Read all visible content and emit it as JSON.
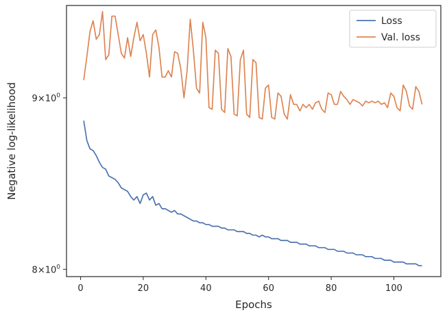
{
  "chart_data": {
    "type": "line",
    "xlabel": "Epochs",
    "ylabel": "Negative log-likelihood",
    "yscale": "log",
    "xlim": [
      -4.5,
      115
    ],
    "ylim": [
      7.96,
      9.59
    ],
    "xticks": [
      0,
      20,
      40,
      60,
      80,
      100
    ],
    "xtick_labels": [
      "0",
      "20",
      "40",
      "60",
      "80",
      "100"
    ],
    "yticks": [
      8,
      9
    ],
    "ytick_labels": [
      {
        "base": "8×10",
        "exp": "0"
      },
      {
        "base": "9×10",
        "exp": "0"
      }
    ],
    "grid": false,
    "legend_position": "top-right",
    "series": [
      {
        "name": "Loss",
        "color": "#4c72b0",
        "x": [
          1,
          2,
          3,
          4,
          5,
          6,
          7,
          8,
          9,
          10,
          11,
          12,
          13,
          14,
          15,
          16,
          17,
          18,
          19,
          20,
          21,
          22,
          23,
          24,
          25,
          26,
          27,
          28,
          29,
          30,
          31,
          32,
          33,
          34,
          35,
          36,
          37,
          38,
          39,
          40,
          41,
          42,
          43,
          44,
          45,
          46,
          47,
          48,
          49,
          50,
          51,
          52,
          53,
          54,
          55,
          56,
          57,
          58,
          59,
          60,
          61,
          62,
          63,
          64,
          65,
          66,
          67,
          68,
          69,
          70,
          71,
          72,
          73,
          74,
          75,
          76,
          77,
          78,
          79,
          80,
          81,
          82,
          83,
          84,
          85,
          86,
          87,
          88,
          89,
          90,
          91,
          92,
          93,
          94,
          95,
          96,
          97,
          98,
          99,
          100,
          101,
          102,
          103,
          104,
          105,
          106,
          107,
          108,
          109
        ],
        "y": [
          8.86,
          8.74,
          8.69,
          8.68,
          8.65,
          8.61,
          8.58,
          8.57,
          8.53,
          8.52,
          8.51,
          8.49,
          8.46,
          8.45,
          8.44,
          8.41,
          8.39,
          8.41,
          8.37,
          8.42,
          8.43,
          8.39,
          8.41,
          8.36,
          8.37,
          8.34,
          8.34,
          8.33,
          8.32,
          8.33,
          8.31,
          8.31,
          8.3,
          8.29,
          8.28,
          8.27,
          8.27,
          8.26,
          8.26,
          8.25,
          8.25,
          8.24,
          8.24,
          8.24,
          8.23,
          8.23,
          8.22,
          8.22,
          8.22,
          8.21,
          8.21,
          8.21,
          8.2,
          8.2,
          8.19,
          8.19,
          8.18,
          8.19,
          8.18,
          8.18,
          8.17,
          8.17,
          8.17,
          8.16,
          8.16,
          8.16,
          8.15,
          8.15,
          8.15,
          8.14,
          8.14,
          8.14,
          8.13,
          8.13,
          8.13,
          8.12,
          8.12,
          8.12,
          8.11,
          8.11,
          8.11,
          8.1,
          8.1,
          8.1,
          8.09,
          8.09,
          8.09,
          8.08,
          8.08,
          8.08,
          8.07,
          8.07,
          8.07,
          8.06,
          8.06,
          8.06,
          8.05,
          8.05,
          8.05,
          8.04,
          8.04,
          8.04,
          8.04,
          8.03,
          8.03,
          8.03,
          8.03,
          8.02,
          8.02
        ]
      },
      {
        "name": "Val. loss",
        "color": "#dd8452",
        "x": [
          1,
          2,
          3,
          4,
          5,
          6,
          7,
          8,
          9,
          10,
          11,
          12,
          13,
          14,
          15,
          16,
          17,
          18,
          19,
          20,
          21,
          22,
          23,
          24,
          25,
          26,
          27,
          28,
          29,
          30,
          31,
          32,
          33,
          34,
          35,
          36,
          37,
          38,
          39,
          40,
          41,
          42,
          43,
          44,
          45,
          46,
          47,
          48,
          49,
          50,
          51,
          52,
          53,
          54,
          55,
          56,
          57,
          58,
          59,
          60,
          61,
          62,
          63,
          64,
          65,
          66,
          67,
          68,
          69,
          70,
          71,
          72,
          73,
          74,
          75,
          76,
          77,
          78,
          79,
          80,
          81,
          82,
          83,
          84,
          85,
          86,
          87,
          88,
          89,
          90,
          91,
          92,
          93,
          94,
          95,
          96,
          97,
          98,
          99,
          100,
          101,
          102,
          103,
          104,
          105,
          106,
          107,
          108,
          109
        ],
        "y": [
          9.11,
          9.26,
          9.42,
          9.49,
          9.37,
          9.4,
          9.55,
          9.24,
          9.27,
          9.52,
          9.52,
          9.4,
          9.28,
          9.25,
          9.38,
          9.26,
          9.38,
          9.48,
          9.36,
          9.4,
          9.28,
          9.13,
          9.4,
          9.43,
          9.32,
          9.13,
          9.13,
          9.17,
          9.13,
          9.29,
          9.28,
          9.18,
          9.0,
          9.17,
          9.5,
          9.3,
          9.06,
          9.03,
          9.48,
          9.38,
          8.94,
          8.93,
          9.3,
          9.28,
          8.93,
          8.91,
          9.31,
          9.26,
          8.9,
          8.89,
          9.24,
          9.3,
          8.9,
          8.88,
          9.24,
          9.22,
          8.88,
          8.87,
          9.06,
          9.08,
          8.88,
          8.87,
          9.03,
          9.01,
          8.9,
          8.87,
          9.02,
          8.96,
          8.96,
          8.92,
          8.96,
          8.94,
          8.96,
          8.93,
          8.97,
          8.98,
          8.93,
          8.91,
          9.03,
          9.02,
          8.96,
          8.96,
          9.04,
          9.01,
          8.99,
          8.96,
          8.99,
          8.98,
          8.97,
          8.95,
          8.98,
          8.97,
          8.98,
          8.97,
          8.98,
          8.96,
          8.97,
          8.94,
          9.03,
          9.01,
          8.94,
          8.92,
          9.08,
          9.04,
          8.95,
          8.93,
          9.07,
          9.04,
          8.96
        ]
      }
    ]
  }
}
